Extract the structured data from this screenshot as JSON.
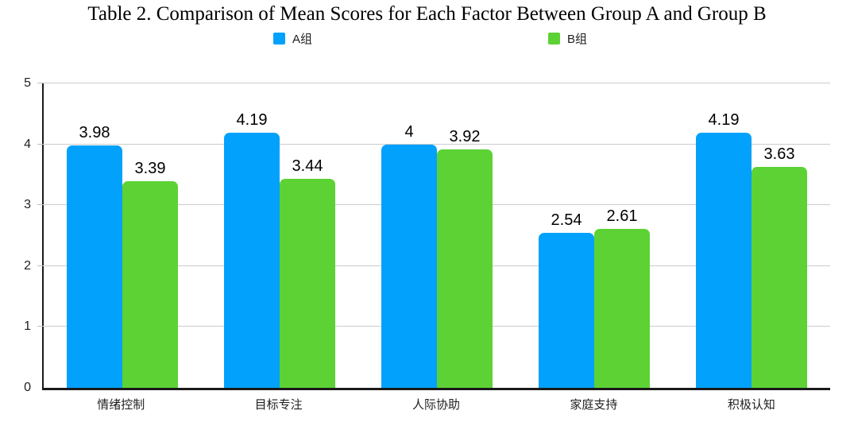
{
  "title": "Table 2. Comparison of Mean Scores for Each Factor Between Group A and Group B",
  "legend": {
    "position": "top",
    "items": [
      {
        "label": "A组",
        "color": "#02A1FC"
      },
      {
        "label": "B组",
        "color": "#5DD234"
      }
    ]
  },
  "colors": {
    "series_a": "#02A1FC",
    "series_b": "#5DD234",
    "axis": "#1a1a1a",
    "gridline": "#cccccc",
    "text": "#1f1f1f"
  },
  "chart_data": {
    "type": "bar",
    "title": "Table 2. Comparison of Mean Scores for Each Factor Between Group A and Group B",
    "categories": [
      "情绪控制",
      "目标专注",
      "人际协助",
      "家庭支持",
      "积极认知"
    ],
    "series": [
      {
        "name": "A组",
        "color": "#02A1FC",
        "values": [
          3.98,
          4.19,
          4,
          2.54,
          4.19
        ]
      },
      {
        "name": "B组",
        "color": "#5DD234",
        "values": [
          3.39,
          3.44,
          3.92,
          2.61,
          3.63
        ]
      }
    ],
    "xlabel": "",
    "ylabel": "",
    "ylim": [
      0,
      5
    ],
    "yticks": [
      0,
      1,
      2,
      3,
      4,
      5
    ],
    "grid": true,
    "legend_position": "top",
    "value_labels_shown": true
  }
}
